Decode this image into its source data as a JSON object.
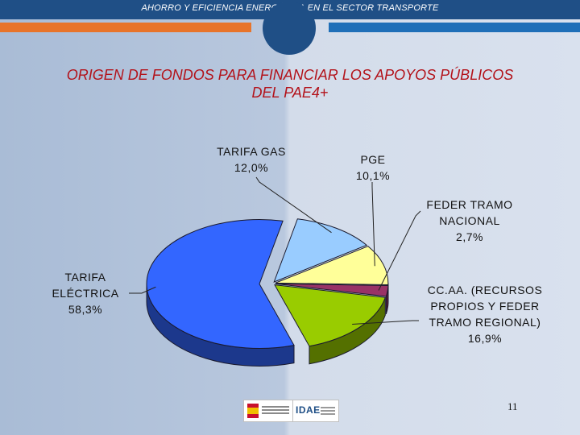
{
  "header": {
    "title": "AHORRO Y EFICIENCIA ENERGÉTICA EN EL SECTOR TRANSPORTE"
  },
  "slide": {
    "page_number": "11"
  },
  "chart_data": {
    "type": "pie",
    "title_line1": "ORIGEN DE FONDOS PARA FINANCIAR LOS APOYOS PÚBLICOS",
    "title_line2": "DEL PAE4+",
    "slices": [
      {
        "label_lines": [
          "TARIFA GAS"
        ],
        "value": 12.0,
        "value_label": "12,0%",
        "color": "#99ccff"
      },
      {
        "label_lines": [
          "PGE"
        ],
        "value": 10.1,
        "value_label": "10,1%",
        "color": "#ffff99"
      },
      {
        "label_lines": [
          "FEDER TRAMO",
          "NACIONAL"
        ],
        "value": 2.7,
        "value_label": "2,7%",
        "color": "#993366"
      },
      {
        "label_lines": [
          "CC.AA. (RECURSOS",
          "PROPIOS Y FEDER",
          "TRAMO REGIONAL)"
        ],
        "value": 16.9,
        "value_label": "16,9%",
        "color": "#99cc00"
      },
      {
        "label_lines": [
          "TARIFA",
          "ELÉCTRICA"
        ],
        "value": 58.3,
        "value_label": "58,3%",
        "color": "#3366ff"
      }
    ]
  },
  "colors": {
    "title_red": "#b3121a",
    "header_blue": "#1f4f86",
    "stripe_orange": "#e8742a"
  },
  "logos": [
    {
      "name": "ministerio-logo"
    },
    {
      "name": "idae-logo",
      "mark": "IDAE"
    }
  ]
}
